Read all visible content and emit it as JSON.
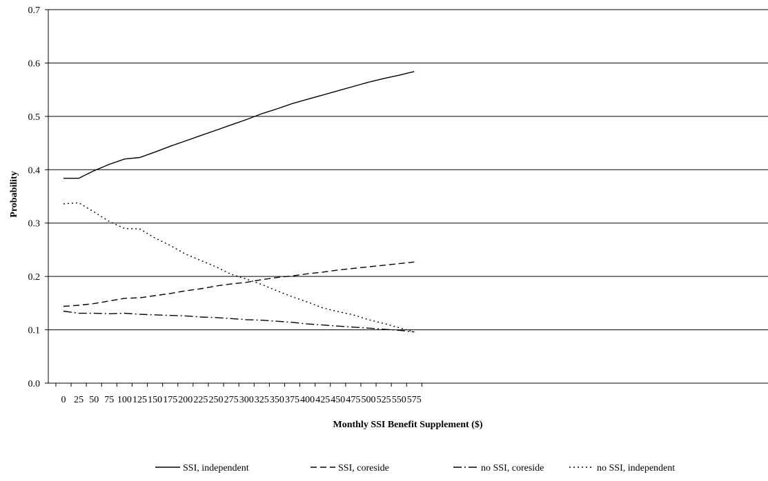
{
  "chart_data": {
    "type": "line",
    "xlabel": "Monthly SSI Benefit Supplement ($)",
    "ylabel": "Probability",
    "ylim": [
      0.0,
      0.7
    ],
    "yticks": [
      "0.0",
      "0.1",
      "0.2",
      "0.3",
      "0.4",
      "0.5",
      "0.6",
      "0.7"
    ],
    "grid": "horizontal",
    "legend_position": "bottom",
    "x": [
      0,
      25,
      50,
      75,
      100,
      125,
      150,
      175,
      200,
      225,
      250,
      275,
      300,
      325,
      350,
      375,
      400,
      425,
      450,
      475,
      500,
      525,
      550,
      575
    ],
    "x_tick_labels": [
      "0",
      "25",
      "50",
      "75",
      "100",
      "125",
      "150",
      "175",
      "200",
      "225",
      "250",
      "275",
      "300",
      "325",
      "350",
      "375",
      "400",
      "425",
      "450",
      "475",
      "500",
      "525",
      "550",
      "575"
    ],
    "series": [
      {
        "name": "SSI, independent",
        "dash": "solid",
        "values": [
          0.384,
          0.384,
          0.398,
          0.41,
          0.42,
          0.423,
          0.433,
          0.444,
          0.454,
          0.464,
          0.474,
          0.484,
          0.494,
          0.505,
          0.514,
          0.524,
          0.532,
          0.54,
          0.548,
          0.556,
          0.564,
          0.571,
          0.577,
          0.584
        ]
      },
      {
        "name": "SSI, coreside",
        "dash": "dash",
        "values": [
          0.144,
          0.146,
          0.149,
          0.154,
          0.159,
          0.16,
          0.164,
          0.168,
          0.173,
          0.177,
          0.182,
          0.186,
          0.189,
          0.194,
          0.198,
          0.201,
          0.205,
          0.208,
          0.212,
          0.215,
          0.218,
          0.221,
          0.224,
          0.227
        ]
      },
      {
        "name": "no SSI, coreside",
        "dash": "dashdot",
        "values": [
          0.135,
          0.131,
          0.131,
          0.13,
          0.131,
          0.129,
          0.128,
          0.127,
          0.126,
          0.124,
          0.123,
          0.121,
          0.119,
          0.118,
          0.116,
          0.114,
          0.111,
          0.109,
          0.107,
          0.105,
          0.103,
          0.101,
          0.099,
          0.096
        ]
      },
      {
        "name": "no SSI, independent",
        "dash": "dot",
        "values": [
          0.336,
          0.338,
          0.321,
          0.303,
          0.29,
          0.289,
          0.272,
          0.258,
          0.242,
          0.23,
          0.218,
          0.204,
          0.195,
          0.185,
          0.173,
          0.162,
          0.152,
          0.141,
          0.134,
          0.128,
          0.119,
          0.112,
          0.104,
          0.096
        ]
      }
    ]
  }
}
